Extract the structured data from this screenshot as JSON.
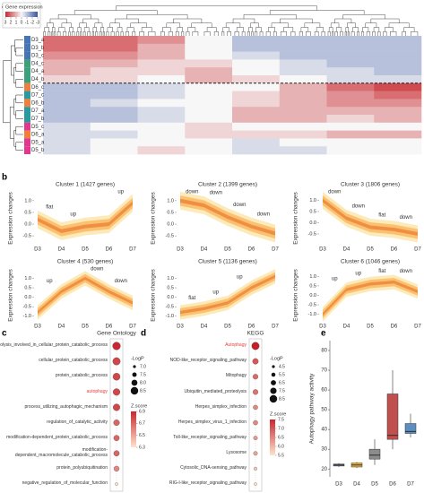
{
  "chart_data": [
    {
      "type": "heatmap",
      "label": "a",
      "legend_title": "Gene expression",
      "clim": [
        -3,
        3
      ],
      "cticks": [
        3,
        2,
        1,
        0,
        -1,
        -2,
        -3
      ],
      "colorscale": [
        "#3a55a4",
        "#f7f7f7",
        "#c8282f"
      ],
      "rows": [
        "D3_a",
        "D3_b",
        "D3_c",
        "D4_c",
        "D4_a",
        "D4_b",
        "D6_c",
        "D7_c",
        "D6_b",
        "D7_a",
        "D7_b",
        "D5_c",
        "D6_a",
        "D5_a",
        "D5_b"
      ],
      "row_colors": [
        "#4575b4",
        "#4575b4",
        "#4575b4",
        "#3aa17a",
        "#3aa17a",
        "#3aa17a",
        "#f07f3c",
        "#2b9a9e",
        "#f07f3c",
        "#2b9a9e",
        "#2b9a9e",
        "#e2368f",
        "#f07f3c",
        "#e2368f",
        "#e2368f"
      ],
      "row_label_colors": [
        "#333333",
        "#333333",
        "#333333",
        "#333333",
        "#333333",
        "#333333",
        "#e8413c",
        "#333333",
        "#e8413c",
        "#333333",
        "#333333",
        "#333333",
        "#e8413c",
        "#333333",
        "#333333"
      ],
      "values": [
        [
          2,
          2,
          1.5,
          0,
          -1,
          -1,
          -1,
          -1
        ],
        [
          2,
          2,
          1,
          0,
          -1,
          -1,
          -1,
          -1
        ],
        [
          1.5,
          1.5,
          1,
          0,
          -0.5,
          -1,
          -1,
          -1
        ],
        [
          1,
          1,
          0.5,
          0.5,
          0,
          -0.5,
          -1,
          -1
        ],
        [
          1,
          0.5,
          0.5,
          1,
          0,
          -0.5,
          -0.5,
          -1
        ],
        [
          0.5,
          0.5,
          0,
          1,
          0.5,
          0,
          -0.5,
          -0.5
        ],
        [
          -1,
          -1,
          -0.5,
          0,
          0,
          1,
          2,
          2.5
        ],
        [
          -1,
          -1,
          -0.5,
          0,
          0.5,
          1,
          1.5,
          2
        ],
        [
          -1,
          -0.5,
          0,
          0,
          0.5,
          1,
          1.5,
          1.5
        ],
        [
          -1,
          -1,
          -0.5,
          0,
          1,
          1,
          1,
          1
        ],
        [
          -1,
          -1,
          -0.5,
          0,
          1,
          1,
          0.5,
          1
        ],
        [
          -0.5,
          0,
          0,
          0.5,
          0,
          0,
          0,
          0
        ],
        [
          -0.5,
          -0.5,
          0,
          0.5,
          0.5,
          0.5,
          1,
          1
        ],
        [
          -0.5,
          0,
          0,
          0,
          -0.5,
          0,
          0,
          0
        ],
        [
          -0.5,
          0,
          0.5,
          0,
          -0.5,
          -0.5,
          0,
          0
        ]
      ]
    },
    {
      "type": "area",
      "label": "b",
      "title": "Cluster 1 (1427 genes)",
      "ylabel": "Expression changes",
      "categories": [
        "D3",
        "D4",
        "D5",
        "D6",
        "D7"
      ],
      "values": [
        0.2,
        -0.3,
        -0.1,
        0.0,
        0.9
      ],
      "ylim": [
        -0.8,
        1.3
      ],
      "yticks": [
        -0.5,
        {
          "value": 0,
          "label": "0.0"
        },
        0.5,
        {
          "value": 1,
          "label": "1.0"
        }
      ],
      "annotations": [
        "flat",
        "up",
        null,
        "up"
      ],
      "colors": [
        "#fde8b2",
        "#f9be68",
        "#ee8a3e"
      ]
    },
    {
      "type": "area",
      "title": "Cluster 2 (1399 genes)",
      "ylabel": "Expression changes",
      "categories": [
        "D3",
        "D4",
        "D5",
        "D6",
        "D7"
      ],
      "values": [
        1.0,
        0.8,
        0.3,
        -0.1,
        -0.4
      ],
      "ylim": [
        -0.8,
        1.3
      ],
      "yticks": [
        -0.5,
        {
          "value": 0,
          "label": "0.0"
        },
        0.5,
        {
          "value": 1,
          "label": "1.0"
        }
      ],
      "annotations": [
        "down",
        "down",
        "down",
        "down"
      ],
      "colors": [
        "#fde8b2",
        "#f9be68",
        "#ee8a3e"
      ]
    },
    {
      "type": "area",
      "title": "Cluster 3 (1806 genes)",
      "ylabel": "Expression changes",
      "categories": [
        "D3",
        "D4",
        "D5",
        "D6",
        "D7"
      ],
      "values": [
        1.0,
        0.2,
        -0.2,
        -0.3,
        -0.5
      ],
      "ylim": [
        -0.9,
        1.3
      ],
      "yticks": [
        -0.5,
        {
          "value": 0,
          "label": "0.0"
        },
        0.5,
        {
          "value": 1,
          "label": "1.0"
        }
      ],
      "annotations": [
        "down",
        "down",
        "flat",
        "down"
      ],
      "colors": [
        "#fde8b2",
        "#f9be68",
        "#ee8a3e"
      ]
    },
    {
      "type": "area",
      "title": "Cluster 4 (530 genes)",
      "ylabel": "Expression changes",
      "categories": [
        "D3",
        "D4",
        "D5",
        "D6",
        "D7"
      ],
      "values": [
        -0.8,
        0.3,
        1.0,
        0.3,
        -0.3
      ],
      "ylim": [
        -1.2,
        1.4
      ],
      "yticks": [
        {
          "value": -1,
          "label": "-1.0"
        },
        -0.5,
        {
          "value": 0,
          "label": "0.0"
        },
        0.5,
        {
          "value": 1,
          "label": "1.0"
        }
      ],
      "annotations": [
        "up",
        null,
        "down",
        "down"
      ],
      "colors": [
        "#fde8b2",
        "#f9be68",
        "#ee8a3e"
      ]
    },
    {
      "type": "area",
      "title": "Cluster 5 (1136 genes)",
      "ylabel": "Expression changes",
      "categories": [
        "D3",
        "D4",
        "D5",
        "D6",
        "D7"
      ],
      "values": [
        -0.8,
        -0.6,
        -0.3,
        0.5,
        1.1
      ],
      "ylim": [
        -1.2,
        1.4
      ],
      "yticks": [
        {
          "value": -1,
          "label": "-1.0"
        },
        -0.5,
        {
          "value": 0,
          "label": "0.0"
        },
        0.5,
        {
          "value": 1,
          "label": "1.0"
        }
      ],
      "annotations": [
        "flat",
        "up",
        "up",
        null
      ],
      "colors": [
        "#fde8b2",
        "#f9be68",
        "#ee8a3e"
      ]
    },
    {
      "type": "area",
      "title": "Cluster 6 (1046 genes)",
      "ylabel": "Expression changes",
      "categories": [
        "D3",
        "D4",
        "D5",
        "D6",
        "D7"
      ],
      "values": [
        -1.0,
        0.3,
        0.6,
        0.7,
        0.2
      ],
      "ylim": [
        -1.3,
        1.3
      ],
      "yticks": [
        {
          "value": -1,
          "label": "-1.0"
        },
        -0.5,
        {
          "value": 0,
          "label": "0.0"
        },
        0.5,
        {
          "value": 1,
          "label": "1.0"
        }
      ],
      "annotations": [
        "up",
        "up",
        "flat",
        "down"
      ],
      "colors": [
        "#fde8b2",
        "#f9be68",
        "#ee8a3e"
      ]
    },
    {
      "type": "bubble",
      "label": "c",
      "title": "Gene Ontology",
      "terms": [
        "proteolysis_involved_in_cellular_protein_catabolic_process",
        "cellular_protein_catabolic_process",
        "protein_catabolic_process",
        "autophagy",
        "process_utilizing_autophagic_mechanism",
        "regulation_of_catalytic_activity",
        "modification-dependent_protein_catabolic_process",
        "modification-dependent_macromolecule_catabolic_process",
        "protein_polyubiquitination",
        "negative_regulation_of_molecular_function"
      ],
      "term_colors": [
        "#333333",
        "#333333",
        "#333333",
        "#e8413c",
        "#333333",
        "#333333",
        "#333333",
        "#333333",
        "#333333",
        "#333333"
      ],
      "logp": [
        8.6,
        8.5,
        8.4,
        8.3,
        8.3,
        8.0,
        7.9,
        7.9,
        7.8,
        7.0
      ],
      "zscore": [
        6.9,
        6.8,
        6.8,
        6.8,
        6.8,
        6.7,
        6.7,
        6.7,
        6.6,
        6.3
      ],
      "size_title": "-LogP",
      "size_ticks": [
        {
          "value": 7,
          "label": "7.0"
        },
        7.5,
        {
          "value": 8,
          "label": "8.0"
        },
        8.5
      ],
      "color_title": "Z.score",
      "color_ticks": [
        6.9,
        6.7,
        6.5,
        6.3
      ],
      "colors": [
        "#fde3cc",
        "#c8282f"
      ]
    },
    {
      "type": "bubble",
      "label": "d",
      "title": "KEGG",
      "terms": [
        "Autophagy",
        "NOD-like_receptor_signaling_pathway",
        "Mitophagy",
        "Ubiquitin_mediated_proteolysis",
        "Herpes_simplex_infection",
        "Herpes_simplex_virus_1_infection",
        "Toll-like_receptor_signaling_pathway",
        "Lysosome",
        "Cytosolic_DNA-sensing_pathway",
        "RIG-I-like_receptor_signaling_pathway"
      ],
      "term_colors": [
        "#e8413c",
        "#333333",
        "#333333",
        "#333333",
        "#333333",
        "#333333",
        "#333333",
        "#333333",
        "#333333",
        "#333333"
      ],
      "logp": [
        8.5,
        7.0,
        6.5,
        6.5,
        6.0,
        6.0,
        5.5,
        5.5,
        4.8,
        4.5
      ],
      "zscore": [
        7.6,
        7.0,
        6.8,
        6.7,
        6.5,
        6.5,
        6.3,
        6.2,
        5.8,
        5.5
      ],
      "size_title": "-LogP",
      "size_ticks": [
        4.5,
        5.5,
        6.5,
        7.5,
        8.5
      ],
      "color_title": "Z.score",
      "color_ticks": [
        7.5,
        {
          "value": 7,
          "label": "7.0"
        },
        6.5,
        {
          "value": 6,
          "label": "6.0"
        },
        5.5
      ],
      "colors": [
        "#fde3cc",
        "#c8282f"
      ]
    },
    {
      "type": "box",
      "label": "e",
      "ylabel": "Autophagy pathway activity",
      "categories": [
        "D3",
        "D4",
        "D5",
        "D6",
        "D7"
      ],
      "whisker_low": [
        21,
        20.5,
        22,
        30,
        36
      ],
      "q1": [
        21.5,
        21,
        25,
        35,
        38
      ],
      "median": [
        22,
        22,
        27,
        37,
        39
      ],
      "q3": [
        22.5,
        23,
        30,
        58,
        43
      ],
      "whisker_high": [
        23,
        23.5,
        35,
        70,
        48
      ],
      "colors": [
        "#7d7fa6",
        "#f1b232",
        "#8c8c8c",
        "#c0504d",
        "#5b8fc0"
      ],
      "ylim": [
        16,
        85
      ],
      "yticks": [
        20,
        30,
        40,
        50,
        60,
        70,
        80
      ]
    }
  ]
}
